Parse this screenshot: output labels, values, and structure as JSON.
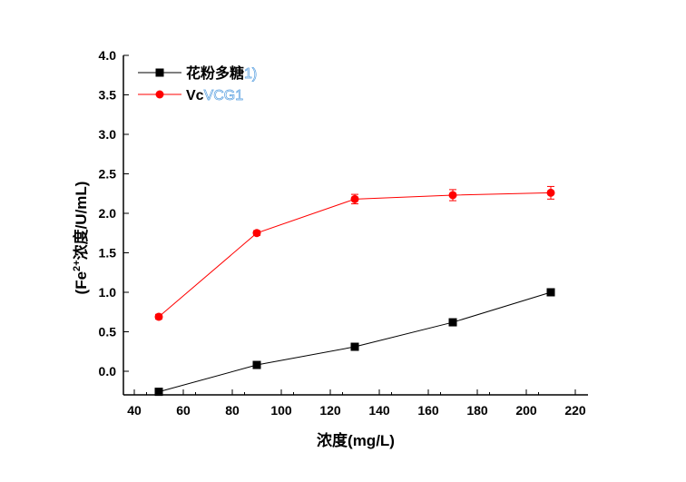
{
  "chart_data": {
    "type": "line",
    "xlabel": "浓度(mg/L)",
    "ylabel_parts": [
      "(Fe",
      "2+",
      "浓度/U/mL)"
    ],
    "xlim": [
      35.6,
      225
    ],
    "ylim": [
      -0.3,
      4.0
    ],
    "xticks": [
      40,
      60,
      80,
      100,
      120,
      140,
      160,
      180,
      200,
      220
    ],
    "yticks": [
      "0.0",
      "0.5",
      "1.0",
      "1.5",
      "2.0",
      "2.5",
      "3.0",
      "3.5",
      "4.0"
    ],
    "grid": false,
    "legend_position": "top-left",
    "x": [
      50,
      90,
      130,
      170,
      210
    ],
    "series": [
      {
        "name": "花粉多糖",
        "name_suffix": "1)",
        "marker": "square",
        "color": "#000000",
        "values": [
          -0.26,
          0.08,
          0.31,
          0.62,
          1.0
        ],
        "errors": [
          0,
          0,
          0,
          0,
          0
        ]
      },
      {
        "name": "Vc",
        "name_suffix": "VCG1",
        "marker": "circle",
        "color": "#ff0000",
        "values": [
          0.69,
          1.75,
          2.18,
          2.23,
          2.26
        ],
        "errors": [
          0.03,
          0.03,
          0.06,
          0.07,
          0.08
        ]
      }
    ]
  }
}
